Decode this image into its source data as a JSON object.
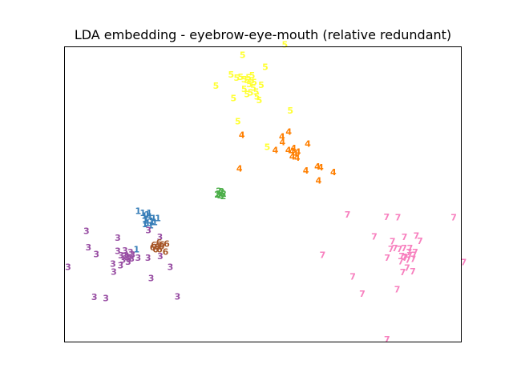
{
  "chart_data": {
    "type": "scatter",
    "title": "LDA embedding - eyebrow-eye-mouth (relative redundant)",
    "xlabel": "",
    "ylabel": "",
    "xlim": [
      0,
      100
    ],
    "ylim": [
      0,
      100
    ],
    "axis_ticks": false,
    "grid": false,
    "marker": "digit label",
    "series": [
      {
        "label": "1",
        "color": "#377eb8",
        "points": [
          [
            18.6,
            44.3
          ],
          [
            19.8,
            43.7
          ],
          [
            21.4,
            43.6
          ],
          [
            20.2,
            42.7
          ],
          [
            22.5,
            41.9
          ],
          [
            20.6,
            41.6
          ],
          [
            23.6,
            41.9
          ],
          [
            21.0,
            40.3
          ],
          [
            22.1,
            40.5
          ],
          [
            20.3,
            39.8
          ],
          [
            21.8,
            39.4
          ],
          [
            22.8,
            40.6
          ],
          [
            21.6,
            42.5
          ],
          [
            20.9,
            43.1
          ],
          [
            22.0,
            41.0
          ],
          [
            20.4,
            41.1
          ],
          [
            18.2,
            31.4
          ]
        ]
      },
      {
        "label": "2",
        "color": "#4daf4a",
        "points": [
          [
            38.9,
            51.1
          ],
          [
            39.5,
            50.4
          ],
          [
            40.1,
            50.1
          ],
          [
            38.8,
            50.2
          ],
          [
            39.2,
            49.6
          ],
          [
            40.0,
            49.3
          ],
          [
            39.6,
            50.9
          ],
          [
            38.5,
            49.9
          ]
        ]
      },
      {
        "label": "3",
        "color": "#984ea3",
        "points": [
          [
            5.6,
            37.6
          ],
          [
            6.1,
            32.0
          ],
          [
            8.1,
            29.7
          ],
          [
            1.0,
            25.4
          ],
          [
            13.5,
            35.3
          ],
          [
            13.5,
            30.8
          ],
          [
            17.0,
            28.3
          ],
          [
            16.3,
            28.2
          ],
          [
            18.6,
            28.5
          ],
          [
            21.1,
            28.5
          ],
          [
            24.1,
            35.5
          ],
          [
            26.7,
            25.4
          ],
          [
            24.2,
            29.0
          ],
          [
            12.3,
            26.5
          ],
          [
            14.2,
            26.0
          ],
          [
            12.5,
            23.8
          ],
          [
            15.6,
            29.3
          ],
          [
            21.9,
            21.6
          ],
          [
            7.6,
            15.3
          ],
          [
            10.5,
            14.9
          ],
          [
            28.5,
            15.4
          ],
          [
            21.2,
            37.9
          ],
          [
            15.2,
            29.0
          ],
          [
            16.7,
            30.4
          ],
          [
            15.9,
            28.6
          ],
          [
            14.8,
            27.9
          ],
          [
            16.1,
            27.2
          ],
          [
            15.3,
            30.9
          ],
          [
            17.2,
            29.6
          ],
          [
            14.3,
            29.3
          ]
        ]
      },
      {
        "label": "4",
        "color": "#ff7f00",
        "points": [
          [
            44.7,
            70.0
          ],
          [
            54.8,
            69.4
          ],
          [
            56.5,
            71.1
          ],
          [
            54.9,
            67.5
          ],
          [
            61.3,
            67.0
          ],
          [
            58.8,
            64.3
          ],
          [
            53.1,
            64.8
          ],
          [
            57.3,
            64.5
          ],
          [
            57.4,
            62.7
          ],
          [
            56.4,
            64.9
          ],
          [
            58.1,
            63.6
          ],
          [
            57.7,
            65.6
          ],
          [
            58.6,
            62.3
          ],
          [
            63.7,
            59.3
          ],
          [
            64.5,
            59.0
          ],
          [
            60.8,
            58.0
          ],
          [
            67.7,
            57.5
          ],
          [
            44.1,
            58.6
          ],
          [
            64.0,
            54.6
          ]
        ]
      },
      {
        "label": "5",
        "color": "#ffff33",
        "points": [
          [
            44.9,
            97.0
          ],
          [
            55.5,
            100.5
          ],
          [
            50.6,
            93.0
          ],
          [
            38.2,
            86.6
          ],
          [
            42.0,
            90.4
          ],
          [
            43.4,
            89.3
          ],
          [
            44.4,
            89.6
          ],
          [
            42.6,
            82.4
          ],
          [
            45.3,
            88.8
          ],
          [
            46.4,
            89.4
          ],
          [
            46.6,
            87.1
          ],
          [
            47.2,
            88.4
          ],
          [
            47.6,
            86.0
          ],
          [
            45.3,
            85.5
          ],
          [
            46.9,
            84.3
          ],
          [
            48.5,
            83.0
          ],
          [
            49.6,
            86.9
          ],
          [
            46.0,
            83.8
          ],
          [
            48.3,
            84.6
          ],
          [
            47.8,
            87.9
          ],
          [
            49.1,
            81.7
          ],
          [
            56.9,
            78.2
          ],
          [
            43.7,
            74.6
          ],
          [
            51.1,
            65.9
          ],
          [
            46.0,
            88.5
          ],
          [
            47.3,
            90.1
          ]
        ]
      },
      {
        "label": "6",
        "color": "#a65628",
        "points": [
          [
            23.9,
            33.6
          ],
          [
            22.6,
            32.8
          ],
          [
            24.5,
            32.5
          ],
          [
            24.0,
            31.3
          ],
          [
            23.0,
            31.4
          ],
          [
            25.5,
            30.6
          ],
          [
            22.3,
            32.0
          ],
          [
            24.6,
            33.0
          ],
          [
            25.8,
            33.2
          ],
          [
            23.5,
            32.3
          ]
        ]
      },
      {
        "label": "7",
        "color": "#f781bf",
        "points": [
          [
            71.3,
            43.1
          ],
          [
            81.1,
            42.3
          ],
          [
            84.0,
            42.2
          ],
          [
            98.0,
            42.2
          ],
          [
            78.0,
            35.7
          ],
          [
            82.6,
            34.1
          ],
          [
            85.6,
            35.5
          ],
          [
            88.6,
            35.9
          ],
          [
            89.5,
            34.2
          ],
          [
            82.2,
            31.5
          ],
          [
            83.2,
            31.8
          ],
          [
            84.4,
            31.5
          ],
          [
            85.5,
            31.8
          ],
          [
            86.8,
            30.4
          ],
          [
            88.0,
            29.4
          ],
          [
            87.0,
            31.8
          ],
          [
            81.3,
            28.5
          ],
          [
            84.9,
            29.0
          ],
          [
            85.8,
            28.5
          ],
          [
            86.5,
            27.9
          ],
          [
            87.8,
            28.1
          ],
          [
            88.3,
            30.4
          ],
          [
            86.3,
            25.1
          ],
          [
            65.0,
            29.5
          ],
          [
            72.6,
            22.1
          ],
          [
            83.8,
            17.9
          ],
          [
            85.2,
            23.6
          ],
          [
            87.7,
            23.9
          ],
          [
            75.0,
            16.3
          ],
          [
            100.5,
            27.0
          ],
          [
            81.2,
            1.0
          ],
          [
            85.6,
            28.8
          ],
          [
            86.9,
            29.3
          ],
          [
            84.7,
            27.3
          ]
        ]
      }
    ]
  }
}
